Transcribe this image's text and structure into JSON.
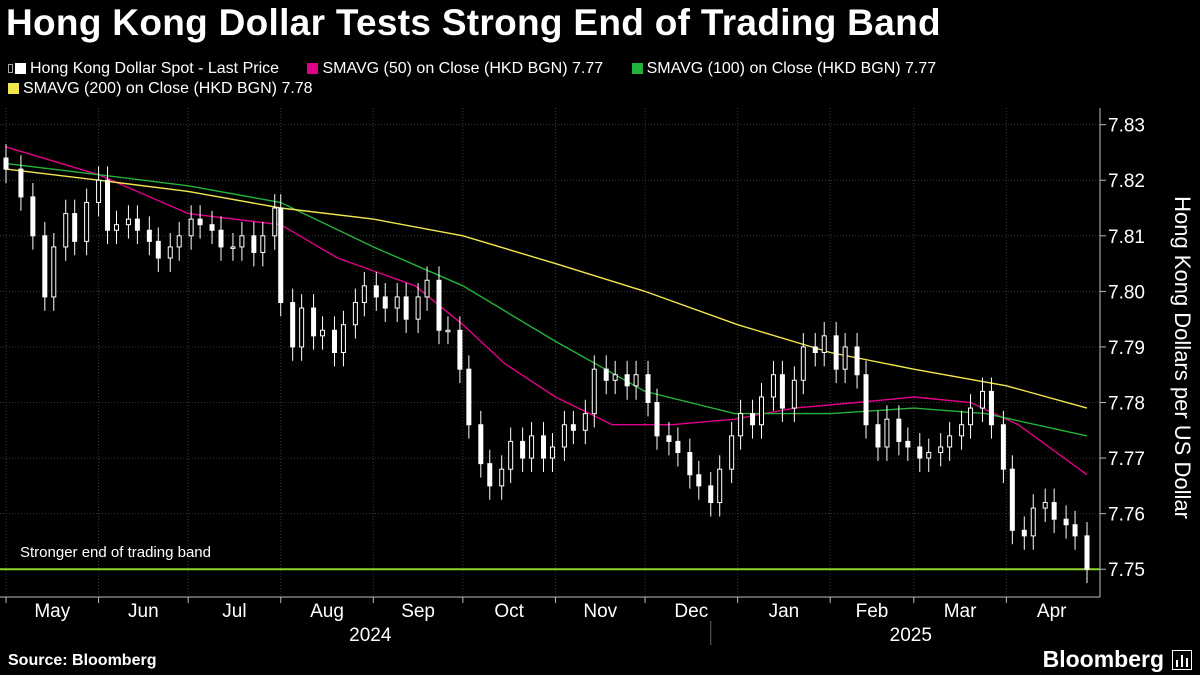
{
  "title": "Hong Kong Dollar Tests Strong End of Trading Band",
  "source": "Source: Bloomberg",
  "brand": "Bloomberg",
  "chart_data": {
    "type": "bar",
    "subtype": "candlestick-with-moving-averages",
    "ylabel": "Hong Kong Dollars per US Dollar",
    "ylim": [
      7.745,
      7.833
    ],
    "yticks": [
      "7.75",
      "7.76",
      "7.77",
      "7.78",
      "7.79",
      "7.80",
      "7.81",
      "7.82",
      "7.83"
    ],
    "grid": true,
    "y_axis_side": "right",
    "x_start": "2024-05-01",
    "x_end": "2025-04-28",
    "months": [
      {
        "label": "May",
        "date": "2024-05-01"
      },
      {
        "label": "Jun",
        "date": "2024-06-01"
      },
      {
        "label": "Jul",
        "date": "2024-07-01"
      },
      {
        "label": "Aug",
        "date": "2024-08-01"
      },
      {
        "label": "Sep",
        "date": "2024-09-01"
      },
      {
        "label": "Oct",
        "date": "2024-10-01"
      },
      {
        "label": "Nov",
        "date": "2024-11-01"
      },
      {
        "label": "Dec",
        "date": "2024-12-01"
      },
      {
        "label": "Jan",
        "date": "2025-01-01"
      },
      {
        "label": "Feb",
        "date": "2025-02-01"
      },
      {
        "label": "Mar",
        "date": "2025-03-01"
      },
      {
        "label": "Apr",
        "date": "2025-04-01"
      }
    ],
    "years": [
      {
        "label": "2024",
        "date": "2024-08-31"
      },
      {
        "label": "2025",
        "date": "2025-02-28"
      }
    ],
    "year_divider_date": "2024-12-23",
    "legend": [
      {
        "label": "Hong Kong Dollar Spot - Last Price",
        "color": "#ffffff",
        "kind": "candle"
      },
      {
        "label": "SMAVG (50)  on Close (HKD BGN) 7.77",
        "color": "#e2008a"
      },
      {
        "label": "SMAVG (100)  on Close (HKD BGN) 7.77",
        "color": "#21b33a"
      },
      {
        "label": "SMAVG (200)  on Close (HKD BGN) 7.78",
        "color": "#f2e64d"
      }
    ],
    "band": {
      "value": 7.75,
      "label": "Stronger end of trading band",
      "color": "#8dd42b"
    },
    "series": [
      {
        "name": "Hong Kong Dollar Spot - Last Price",
        "color": "#ffffff",
        "values": [
          [
            "2024-05-01",
            7.822
          ],
          [
            "2024-05-06",
            7.817
          ],
          [
            "2024-05-10",
            7.81
          ],
          [
            "2024-05-14",
            7.799
          ],
          [
            "2024-05-17",
            7.808
          ],
          [
            "2024-05-21",
            7.814
          ],
          [
            "2024-05-24",
            7.809
          ],
          [
            "2024-05-28",
            7.816
          ],
          [
            "2024-06-01",
            7.82
          ],
          [
            "2024-06-04",
            7.811
          ],
          [
            "2024-06-07",
            7.812
          ],
          [
            "2024-06-11",
            7.813
          ],
          [
            "2024-06-14",
            7.811
          ],
          [
            "2024-06-18",
            7.809
          ],
          [
            "2024-06-21",
            7.806
          ],
          [
            "2024-06-25",
            7.808
          ],
          [
            "2024-06-28",
            7.81
          ],
          [
            "2024-07-02",
            7.813
          ],
          [
            "2024-07-05",
            7.812
          ],
          [
            "2024-07-09",
            7.811
          ],
          [
            "2024-07-12",
            7.808
          ],
          [
            "2024-07-16",
            7.808
          ],
          [
            "2024-07-19",
            7.81
          ],
          [
            "2024-07-23",
            7.807
          ],
          [
            "2024-07-26",
            7.81
          ],
          [
            "2024-07-30",
            7.815
          ],
          [
            "2024-08-01",
            7.798
          ],
          [
            "2024-08-05",
            7.79
          ],
          [
            "2024-08-08",
            7.797
          ],
          [
            "2024-08-12",
            7.792
          ],
          [
            "2024-08-15",
            7.793
          ],
          [
            "2024-08-19",
            7.789
          ],
          [
            "2024-08-22",
            7.794
          ],
          [
            "2024-08-26",
            7.798
          ],
          [
            "2024-08-29",
            7.801
          ],
          [
            "2024-09-02",
            7.799
          ],
          [
            "2024-09-05",
            7.797
          ],
          [
            "2024-09-09",
            7.799
          ],
          [
            "2024-09-12",
            7.795
          ],
          [
            "2024-09-16",
            7.799
          ],
          [
            "2024-09-19",
            7.802
          ],
          [
            "2024-09-23",
            7.793
          ],
          [
            "2024-09-26",
            7.793
          ],
          [
            "2024-09-30",
            7.786
          ],
          [
            "2024-10-03",
            7.776
          ],
          [
            "2024-10-07",
            7.769
          ],
          [
            "2024-10-10",
            7.765
          ],
          [
            "2024-10-14",
            7.768
          ],
          [
            "2024-10-17",
            7.773
          ],
          [
            "2024-10-21",
            7.77
          ],
          [
            "2024-10-24",
            7.774
          ],
          [
            "2024-10-28",
            7.77
          ],
          [
            "2024-10-31",
            7.772
          ],
          [
            "2024-11-04",
            7.776
          ],
          [
            "2024-11-07",
            7.775
          ],
          [
            "2024-11-11",
            7.778
          ],
          [
            "2024-11-14",
            7.786
          ],
          [
            "2024-11-18",
            7.784
          ],
          [
            "2024-11-21",
            7.785
          ],
          [
            "2024-11-25",
            7.783
          ],
          [
            "2024-11-28",
            7.785
          ],
          [
            "2024-12-02",
            7.78
          ],
          [
            "2024-12-05",
            7.774
          ],
          [
            "2024-12-09",
            7.773
          ],
          [
            "2024-12-12",
            7.771
          ],
          [
            "2024-12-16",
            7.767
          ],
          [
            "2024-12-19",
            7.765
          ],
          [
            "2024-12-23",
            7.762
          ],
          [
            "2024-12-26",
            7.768
          ],
          [
            "2024-12-30",
            7.774
          ],
          [
            "2025-01-02",
            7.778
          ],
          [
            "2025-01-06",
            7.776
          ],
          [
            "2025-01-09",
            7.781
          ],
          [
            "2025-01-13",
            7.785
          ],
          [
            "2025-01-16",
            7.779
          ],
          [
            "2025-01-20",
            7.784
          ],
          [
            "2025-01-23",
            7.79
          ],
          [
            "2025-01-27",
            7.789
          ],
          [
            "2025-01-30",
            7.792
          ],
          [
            "2025-02-03",
            7.786
          ],
          [
            "2025-02-06",
            7.79
          ],
          [
            "2025-02-10",
            7.785
          ],
          [
            "2025-02-13",
            7.776
          ],
          [
            "2025-02-17",
            7.772
          ],
          [
            "2025-02-20",
            7.777
          ],
          [
            "2025-02-24",
            7.773
          ],
          [
            "2025-02-27",
            7.772
          ],
          [
            "2025-03-03",
            7.77
          ],
          [
            "2025-03-06",
            7.771
          ],
          [
            "2025-03-10",
            7.772
          ],
          [
            "2025-03-13",
            7.774
          ],
          [
            "2025-03-17",
            7.776
          ],
          [
            "2025-03-20",
            7.779
          ],
          [
            "2025-03-24",
            7.782
          ],
          [
            "2025-03-27",
            7.776
          ],
          [
            "2025-03-31",
            7.768
          ],
          [
            "2025-04-03",
            7.757
          ],
          [
            "2025-04-07",
            7.756
          ],
          [
            "2025-04-10",
            7.761
          ],
          [
            "2025-04-14",
            7.762
          ],
          [
            "2025-04-17",
            7.759
          ],
          [
            "2025-04-21",
            7.758
          ],
          [
            "2025-04-24",
            7.756
          ],
          [
            "2025-04-28",
            7.75
          ]
        ]
      },
      {
        "name": "SMAVG (50)  on Close (HKD BGN) 7.77",
        "color": "#e2008a",
        "values": [
          [
            "2024-05-01",
            7.826
          ],
          [
            "2024-06-01",
            7.821
          ],
          [
            "2024-07-01",
            7.814
          ],
          [
            "2024-08-01",
            7.812
          ],
          [
            "2024-08-20",
            7.806
          ],
          [
            "2024-09-15",
            7.801
          ],
          [
            "2024-10-01",
            7.794
          ],
          [
            "2024-10-15",
            7.787
          ],
          [
            "2024-11-01",
            7.781
          ],
          [
            "2024-11-20",
            7.776
          ],
          [
            "2024-12-10",
            7.776
          ],
          [
            "2024-12-31",
            7.777
          ],
          [
            "2025-01-20",
            7.779
          ],
          [
            "2025-02-10",
            7.78
          ],
          [
            "2025-03-01",
            7.781
          ],
          [
            "2025-03-20",
            7.78
          ],
          [
            "2025-04-05",
            7.776
          ],
          [
            "2025-04-28",
            7.767
          ]
        ]
      },
      {
        "name": "SMAVG (100)  on Close (HKD BGN) 7.77",
        "color": "#21b33a",
        "values": [
          [
            "2024-05-01",
            7.823
          ],
          [
            "2024-06-01",
            7.821
          ],
          [
            "2024-07-01",
            7.819
          ],
          [
            "2024-08-01",
            7.816
          ],
          [
            "2024-09-01",
            7.808
          ],
          [
            "2024-10-01",
            7.801
          ],
          [
            "2024-11-01",
            7.791
          ],
          [
            "2024-12-01",
            7.782
          ],
          [
            "2024-12-31",
            7.778
          ],
          [
            "2025-02-01",
            7.778
          ],
          [
            "2025-03-01",
            7.779
          ],
          [
            "2025-03-25",
            7.778
          ],
          [
            "2025-04-28",
            7.774
          ]
        ]
      },
      {
        "name": "SMAVG (200)  on Close (HKD BGN) 7.78",
        "color": "#f2e64d",
        "values": [
          [
            "2024-05-01",
            7.822
          ],
          [
            "2024-06-01",
            7.82
          ],
          [
            "2024-07-01",
            7.818
          ],
          [
            "2024-08-01",
            7.815
          ],
          [
            "2024-09-01",
            7.813
          ],
          [
            "2024-10-01",
            7.81
          ],
          [
            "2024-11-01",
            7.805
          ],
          [
            "2024-12-01",
            7.8
          ],
          [
            "2025-01-01",
            7.794
          ],
          [
            "2025-02-01",
            7.789
          ],
          [
            "2025-03-01",
            7.786
          ],
          [
            "2025-04-01",
            7.783
          ],
          [
            "2025-04-28",
            7.779
          ]
        ]
      }
    ]
  }
}
